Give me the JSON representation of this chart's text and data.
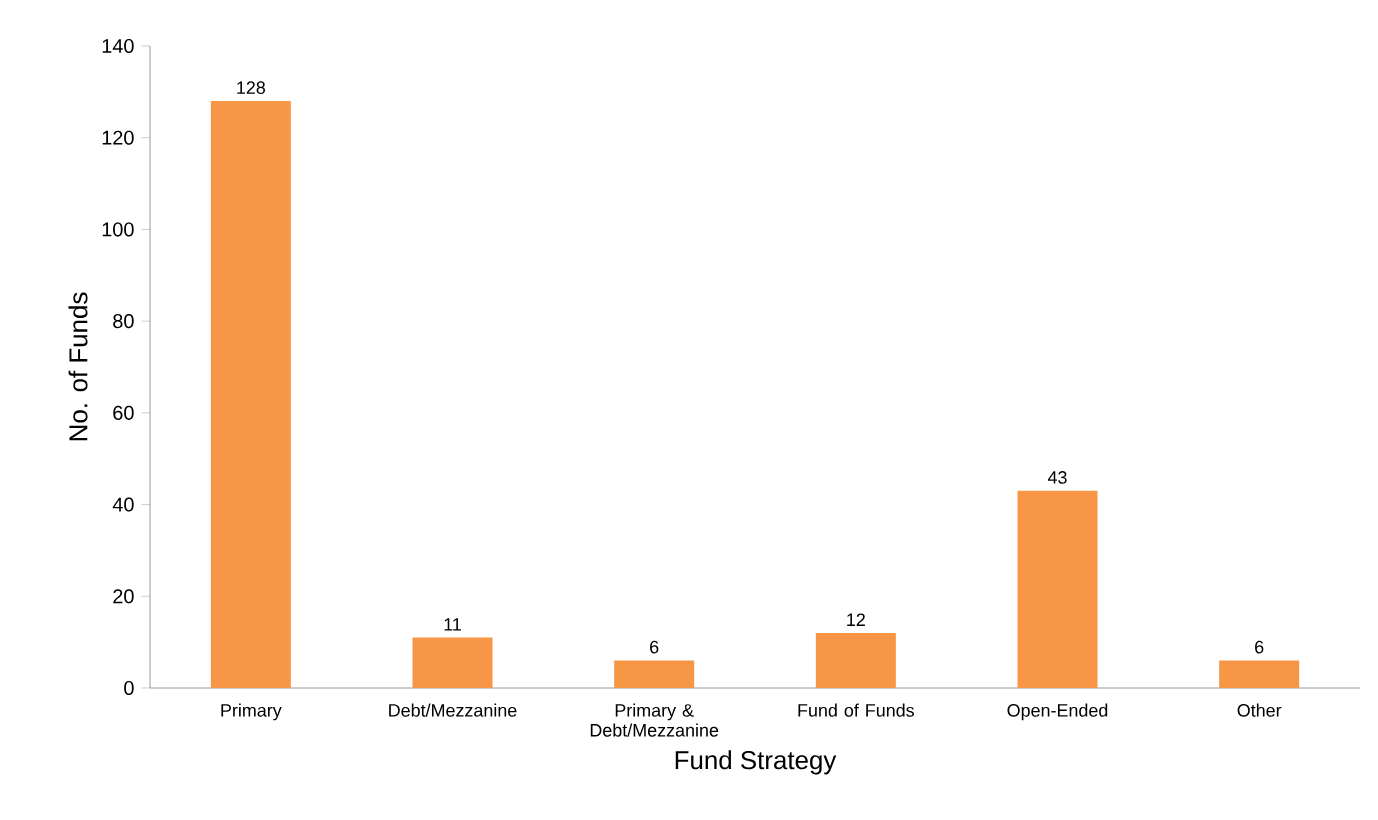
{
  "chart_data": {
    "type": "bar",
    "xlabel": "Fund Strategy",
    "ylabel": "No. of Funds",
    "categories": [
      "Primary",
      "Debt/Mezzanine",
      "Primary & Debt/Mezzanine",
      "Fund of Funds",
      "Open-Ended",
      "Other"
    ],
    "values": [
      128,
      11,
      6,
      12,
      43,
      6
    ],
    "color": "#f79646",
    "ylim": [
      0,
      140
    ],
    "yticks": [
      0,
      20,
      40,
      60,
      80,
      100,
      120,
      140
    ],
    "data_labels": true
  }
}
